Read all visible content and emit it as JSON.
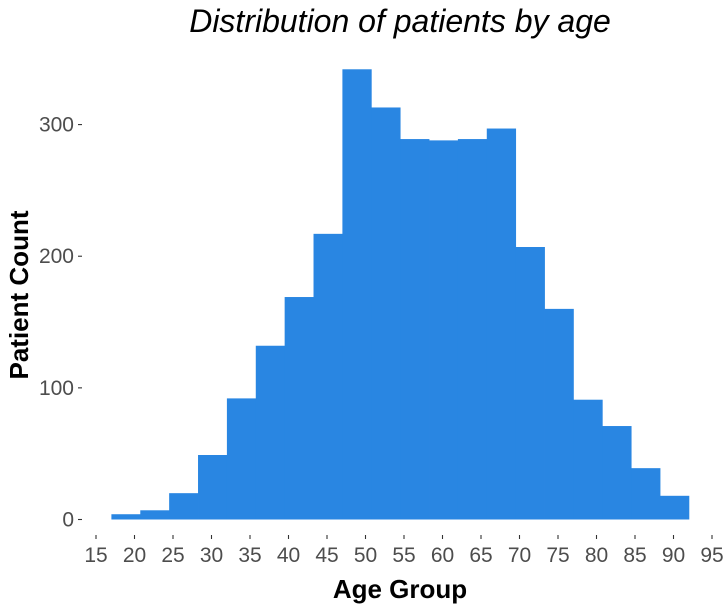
{
  "chart_data": {
    "type": "bar",
    "title": "Distribution of patients by age",
    "xlabel": "Age Group",
    "ylabel": "Patient Count",
    "bar_color": "#2986E2",
    "grid": false,
    "legend": "none",
    "xlim": [
      15,
      95
    ],
    "ylim": [
      0,
      340
    ],
    "x_ticks": [
      15,
      20,
      25,
      30,
      35,
      40,
      45,
      50,
      55,
      60,
      65,
      70,
      75,
      80,
      85,
      90,
      95
    ],
    "y_ticks": [
      0,
      100,
      200,
      300
    ],
    "bin_width": 3.75,
    "bin_starts": [
      17.0,
      20.75,
      24.5,
      28.25,
      32.0,
      35.75,
      39.5,
      43.25,
      47.0,
      50.75,
      54.5,
      58.25,
      62.0,
      65.75,
      69.5,
      73.25,
      77.0,
      80.75,
      84.5,
      88.25
    ],
    "values": [
      4,
      7,
      20,
      49,
      92,
      132,
      169,
      217,
      342,
      313,
      289,
      288,
      289,
      297,
      207,
      160,
      91,
      71,
      39,
      18
    ]
  }
}
